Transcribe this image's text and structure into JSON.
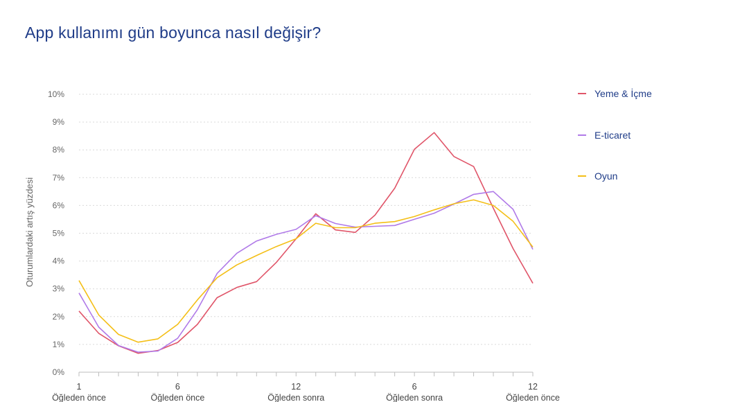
{
  "title": "App kullanımı gün boyunca nasıl değişir?",
  "chart_data": {
    "type": "line",
    "title": "App kullanımı gün boyunca nasıl değişir?",
    "ylabel": "Oturumlardaki artış yüzdesi",
    "xlabel": "",
    "yticks": [
      "0%",
      "1%",
      "2%",
      "3%",
      "4%",
      "5%",
      "6%",
      "7%",
      "8%",
      "9%",
      "10%"
    ],
    "ylim": [
      0,
      10
    ],
    "xlim": [
      1,
      24
    ],
    "xticks": [
      {
        "x": 1,
        "num": "1",
        "sub": "Öğleden önce"
      },
      {
        "x": 6,
        "num": "6",
        "sub": "Öğleden önce"
      },
      {
        "x": 12,
        "num": "12",
        "sub": "Öğleden sonra"
      },
      {
        "x": 18,
        "num": "6",
        "sub": "Öğleden sonra"
      },
      {
        "x": 24,
        "num": "12",
        "sub": "Öğleden önce"
      }
    ],
    "x": [
      1,
      2,
      3,
      4,
      5,
      6,
      7,
      8,
      9,
      10,
      11,
      12,
      13,
      14,
      15,
      16,
      17,
      18,
      19,
      20,
      21,
      22,
      23,
      24
    ],
    "series": [
      {
        "name": "Yeme & İçme",
        "color": "#e05569",
        "values": [
          2.2,
          1.4,
          0.95,
          0.68,
          0.78,
          1.07,
          1.72,
          2.68,
          3.05,
          3.26,
          3.95,
          4.8,
          5.7,
          5.12,
          5.03,
          5.65,
          6.62,
          8.02,
          8.62,
          7.76,
          7.4,
          5.9,
          4.45,
          3.2
        ]
      },
      {
        "name": "E-ticaret",
        "color": "#b07ae8",
        "values": [
          2.85,
          1.62,
          0.96,
          0.72,
          0.76,
          1.22,
          2.25,
          3.55,
          4.28,
          4.72,
          4.96,
          5.14,
          5.63,
          5.35,
          5.22,
          5.25,
          5.28,
          5.5,
          5.72,
          6.05,
          6.4,
          6.5,
          5.86,
          4.42
        ]
      },
      {
        "name": "Oyun",
        "color": "#f4bf17",
        "values": [
          3.3,
          2.06,
          1.36,
          1.08,
          1.2,
          1.72,
          2.6,
          3.4,
          3.86,
          4.2,
          4.52,
          4.8,
          5.36,
          5.2,
          5.2,
          5.36,
          5.42,
          5.6,
          5.84,
          6.06,
          6.2,
          6.0,
          5.43,
          4.5
        ]
      }
    ],
    "legend_position": "right",
    "grid": true
  }
}
